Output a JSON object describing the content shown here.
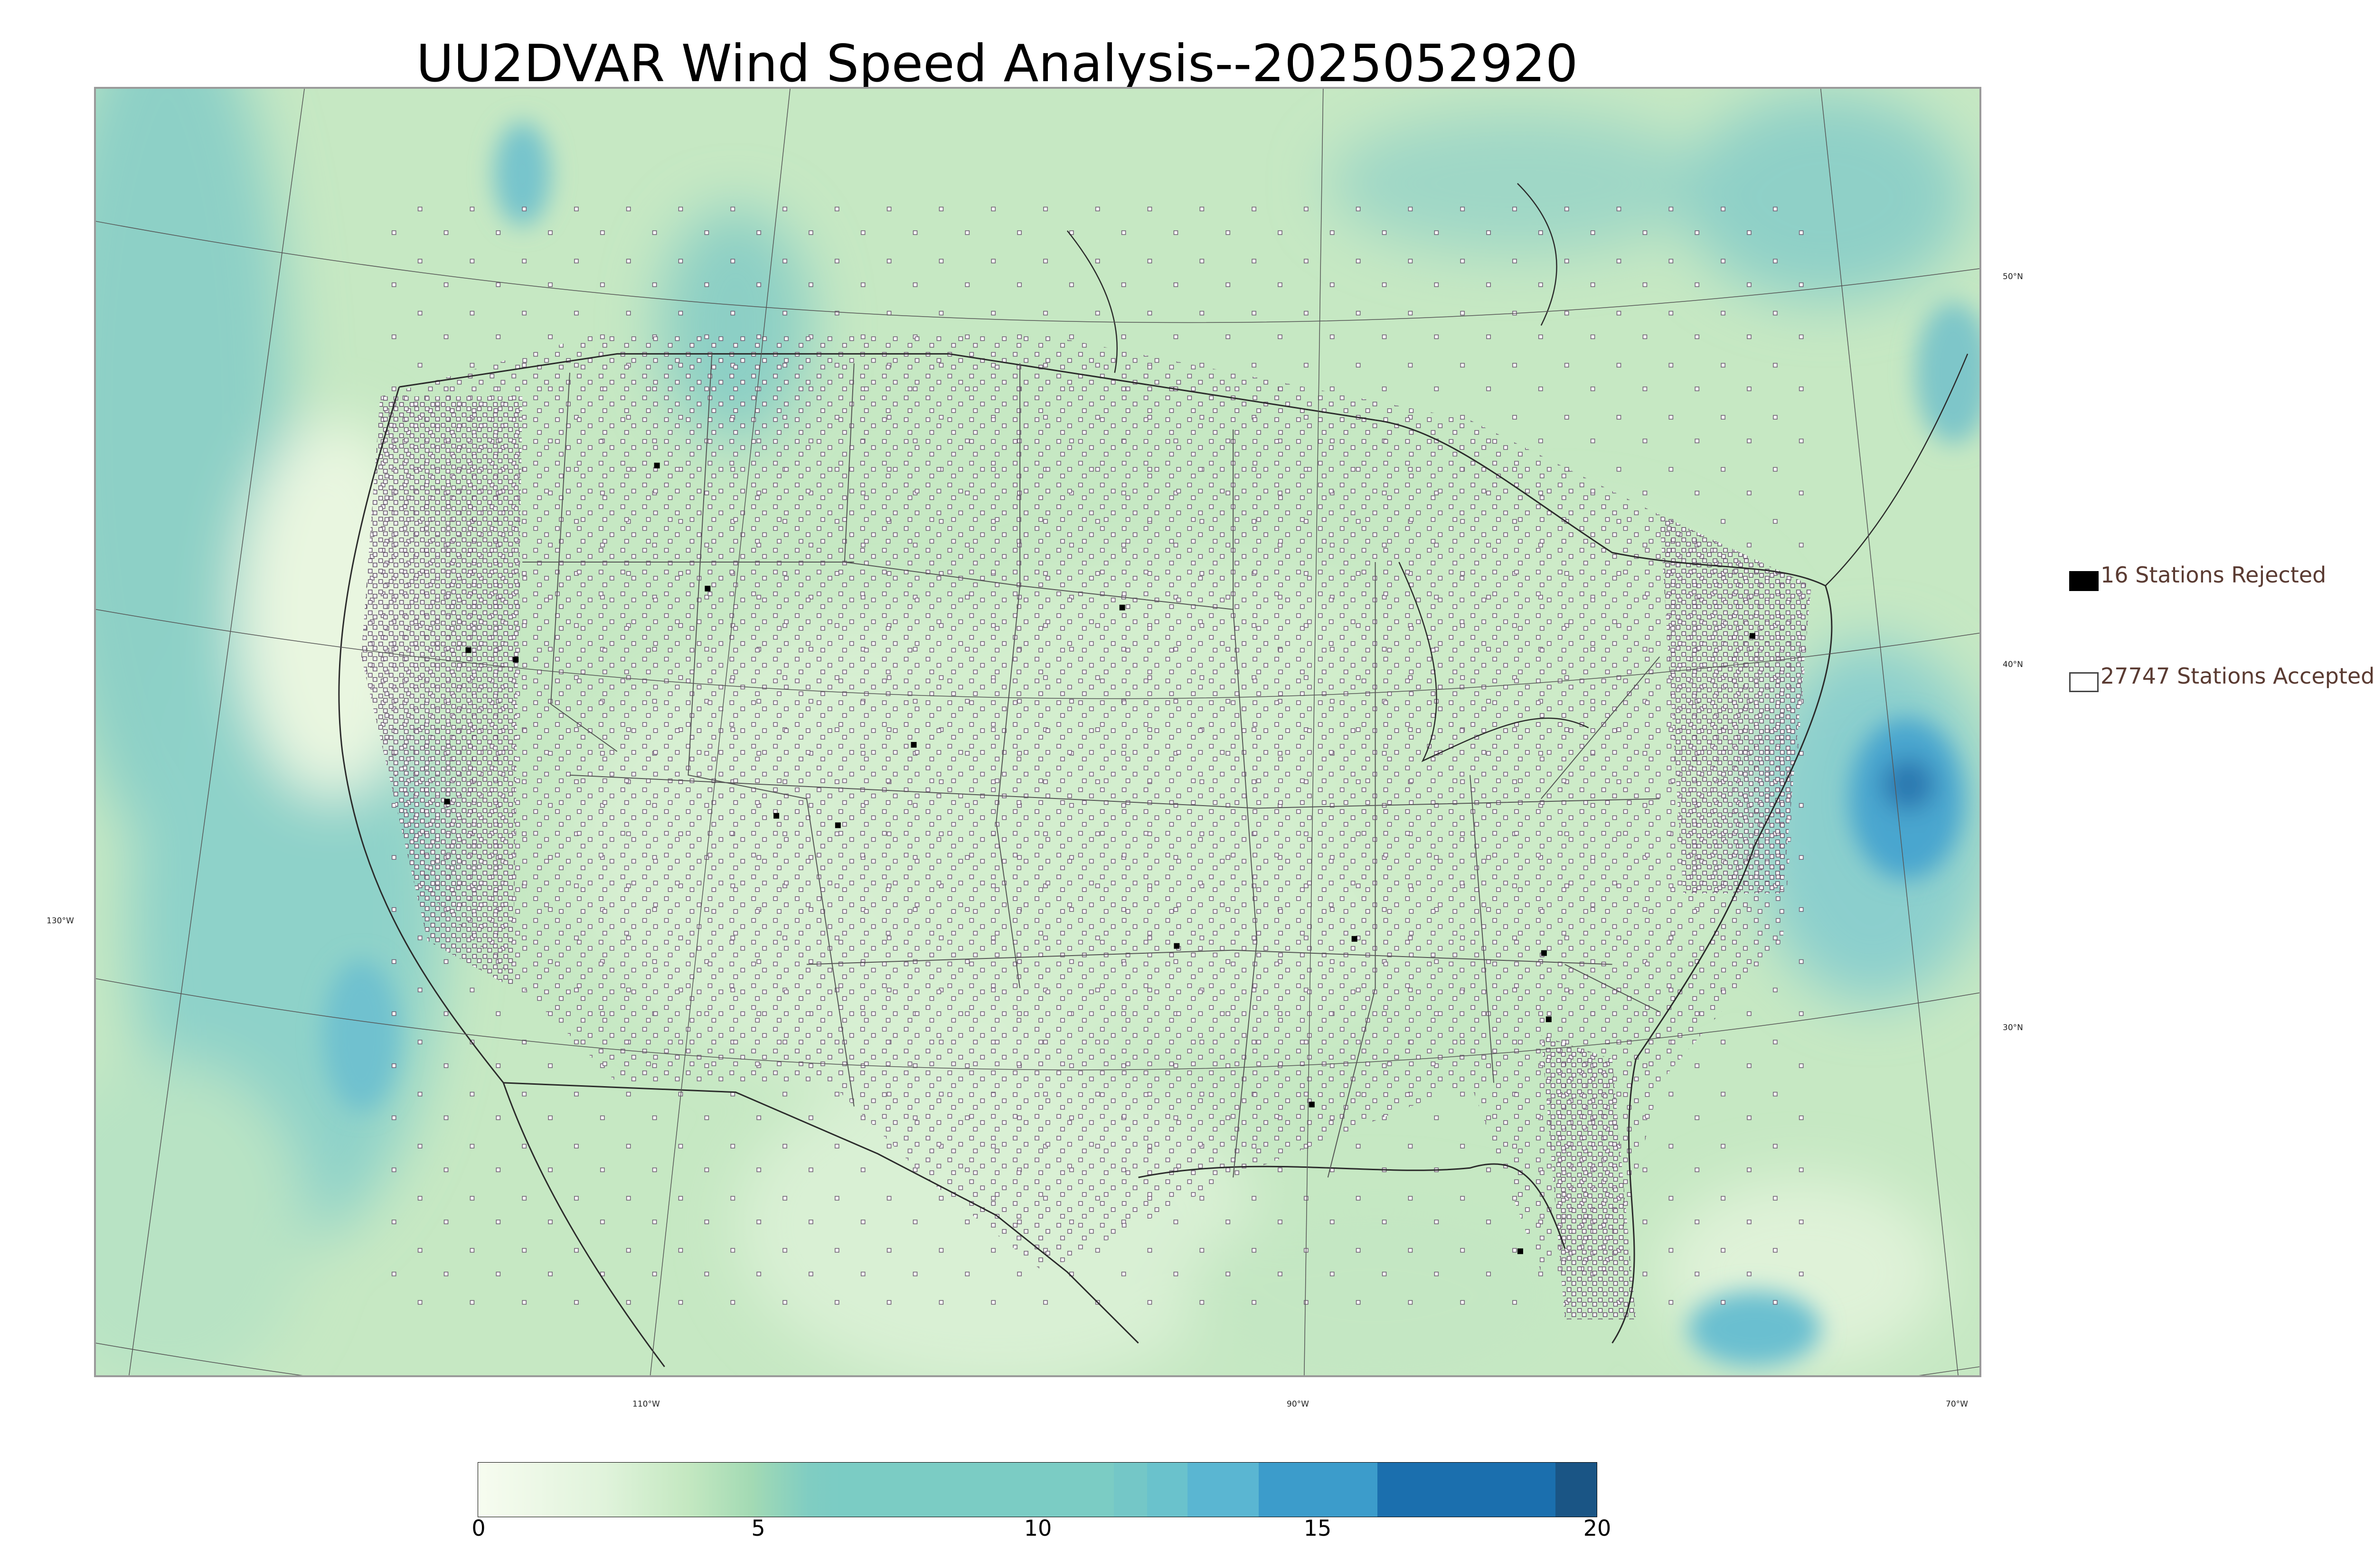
{
  "title": "UU2DVAR Wind Speed Analysis--2025052920",
  "map": {
    "longitude_labels": [
      "130°W",
      "110°W",
      "90°W",
      "70°W"
    ],
    "latitude_labels": [
      "50°N",
      "40°N",
      "30°N"
    ]
  },
  "legend": {
    "rejected_label": "16 Stations Rejected",
    "accepted_label": "27747 Stations Accepted"
  },
  "colorbar": {
    "ticks": [
      "0",
      "5",
      "10",
      "15",
      "20"
    ],
    "colors": [
      "#f7fcf0",
      "#e0f3db",
      "#ccebc5",
      "#a8ddb5",
      "#7bccc4",
      "#4eb3d3",
      "#2b8cbe",
      "#0868ac",
      "#1a5585"
    ]
  }
}
